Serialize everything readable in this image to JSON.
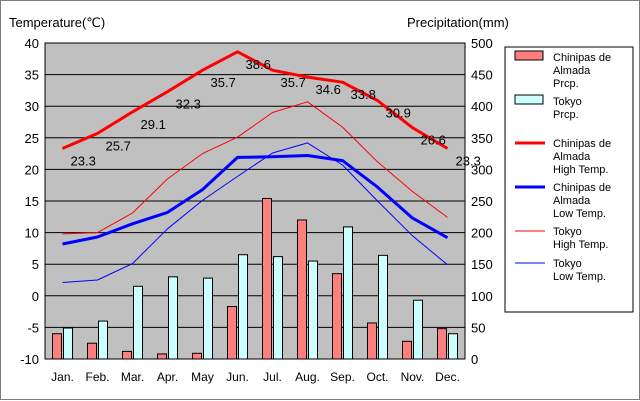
{
  "chart_data": {
    "type": "bar",
    "left_axis_title": "Temperature(℃)",
    "right_axis_title": "Precipitation(mm)",
    "categories": [
      "Jan.",
      "Feb.",
      "Mar.",
      "Apr.",
      "May",
      "Jun.",
      "Jul.",
      "Aug.",
      "Sep.",
      "Oct.",
      "Nov.",
      "Dec."
    ],
    "y_left": {
      "min": -10,
      "max": 40,
      "ticks": [
        "40",
        "35",
        "30",
        "25",
        "20",
        "15",
        "10",
        "5",
        "0",
        "-5",
        "-10"
      ]
    },
    "y_right": {
      "min": 0,
      "max": 500,
      "ticks": [
        "500",
        "450",
        "400",
        "350",
        "300",
        "250",
        "200",
        "150",
        "100",
        "50",
        "0"
      ]
    },
    "grid": true,
    "plot_background": "#c0c0c0",
    "bars": [
      {
        "name": "Chinipas de Almada Prcp.",
        "color": "#ff7f7f",
        "values": [
          40,
          25,
          12,
          8,
          9,
          83,
          254,
          220,
          135,
          57,
          28,
          48
        ]
      },
      {
        "name": "Tokyo Prcp.",
        "color": "#ccffff",
        "values": [
          49,
          60,
          115,
          130,
          128,
          165,
          162,
          155,
          209,
          164,
          93,
          40
        ]
      }
    ],
    "lines": [
      {
        "name": "Chinipas de Almada High Temp.",
        "color": "#ff0000",
        "width": 3,
        "values": [
          23.3,
          25.7,
          29.1,
          32.3,
          35.7,
          38.6,
          35.7,
          34.6,
          33.8,
          30.9,
          26.6,
          23.3
        ],
        "labels": [
          "23.3",
          "25.7",
          "29.1",
          "32.3",
          "35.7",
          "38.6",
          "35.7",
          "34.6",
          "33.8",
          "30.9",
          "26.6",
          "23.3"
        ]
      },
      {
        "name": "Chinipas de Almada Low Temp.",
        "color": "#0000ff",
        "width": 3,
        "values": [
          8.2,
          9.3,
          11.4,
          13.2,
          16.8,
          21.9,
          22.0,
          22.2,
          21.4,
          17.2,
          12.3,
          9.2
        ]
      },
      {
        "name": "Tokyo High Temp.",
        "color": "#ff0000",
        "width": 1,
        "values": [
          9.8,
          10.0,
          13.1,
          18.5,
          22.5,
          25.1,
          29.0,
          30.7,
          26.7,
          21.2,
          16.5,
          12.4
        ]
      },
      {
        "name": "Tokyo Low Temp.",
        "color": "#0000ff",
        "width": 1,
        "values": [
          2.1,
          2.5,
          5.1,
          10.6,
          15.1,
          18.9,
          22.6,
          24.2,
          20.7,
          15.0,
          9.5,
          4.9
        ]
      }
    ],
    "legend": {
      "position": "right",
      "items": [
        {
          "lines": [
            "Chinipas de",
            "Almada",
            "Prcp."
          ],
          "kind": "bar",
          "color": "#ff7f7f"
        },
        {
          "lines": [
            "Tokyo",
            "Prcp."
          ],
          "kind": "bar",
          "color": "#ccffff"
        },
        {
          "lines": [
            "Chinipas de",
            "Almada",
            "High Temp."
          ],
          "kind": "line",
          "color": "#ff0000",
          "width": 3
        },
        {
          "lines": [
            "Chinipas de",
            "Almada",
            "Low Temp."
          ],
          "kind": "line",
          "color": "#0000ff",
          "width": 3
        },
        {
          "lines": [
            "Tokyo",
            "High Temp."
          ],
          "kind": "line",
          "color": "#ff0000",
          "width": 1
        },
        {
          "lines": [
            "Tokyo",
            "Low Temp."
          ],
          "kind": "line",
          "color": "#0000ff",
          "width": 1
        }
      ]
    }
  }
}
